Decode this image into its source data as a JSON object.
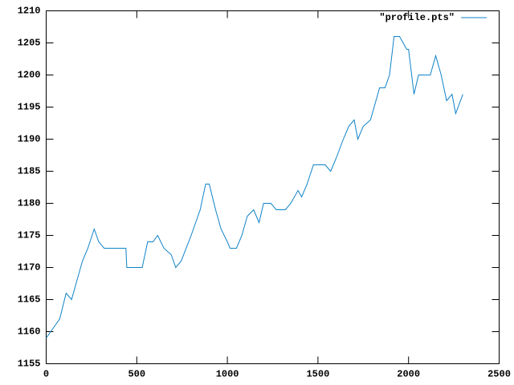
{
  "chart_data": {
    "type": "line",
    "x": [
      0,
      25,
      50,
      75,
      110,
      140,
      170,
      200,
      230,
      265,
      290,
      320,
      440,
      445,
      530,
      560,
      590,
      615,
      650,
      690,
      715,
      745,
      800,
      850,
      880,
      900,
      935,
      965,
      1000,
      1015,
      1050,
      1080,
      1110,
      1145,
      1175,
      1200,
      1240,
      1270,
      1320,
      1350,
      1390,
      1410,
      1440,
      1475,
      1540,
      1570,
      1600,
      1640,
      1670,
      1700,
      1720,
      1750,
      1790,
      1810,
      1840,
      1870,
      1895,
      1920,
      1950,
      1990,
      2000,
      2030,
      2055,
      2120,
      2150,
      2180,
      2210,
      2240,
      2260,
      2300
    ],
    "series": [
      {
        "name": "\"profile.pts\"",
        "color": "#0f83c8",
        "values": [
          1159,
          1160,
          1161,
          1162,
          1166,
          1165,
          1168,
          1171,
          1173,
          1176,
          1174,
          1173,
          1173,
          1170,
          1170,
          1174,
          1174,
          1175,
          1173,
          1172,
          1170,
          1171,
          1175,
          1179,
          1183,
          1183,
          1179,
          1176,
          1174,
          1173,
          1173,
          1175,
          1178,
          1179,
          1177,
          1180,
          1180,
          1179,
          1179,
          1180,
          1182,
          1181,
          1183,
          1186,
          1186,
          1185,
          1187,
          1190,
          1192,
          1193,
          1190,
          1192,
          1193,
          1195,
          1198,
          1198,
          1200,
          1206,
          1206,
          1204,
          1204,
          1197,
          1200,
          1200,
          1203,
          1200,
          1196,
          1197,
          1194,
          1197
        ]
      }
    ],
    "xlim": [
      0,
      2500
    ],
    "xticks": [
      0,
      500,
      1000,
      1500,
      2000,
      2500
    ],
    "ylim": [
      1155,
      1210
    ],
    "yticks": [
      1155,
      1160,
      1165,
      1170,
      1175,
      1180,
      1185,
      1190,
      1195,
      1200,
      1205,
      1210
    ],
    "legend": "top-right"
  }
}
